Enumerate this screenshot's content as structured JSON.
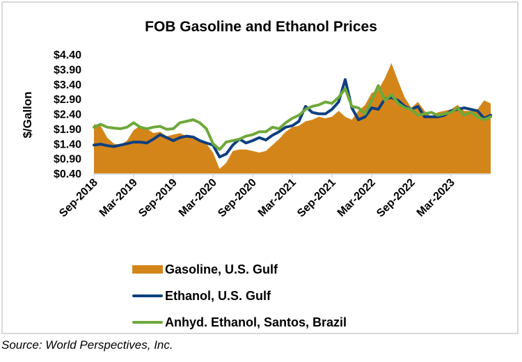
{
  "chart_data": {
    "type": "area+line",
    "title": "FOB Gasoline and Ethanol Prices",
    "ylabel": "$/Gallon",
    "xlabel": "",
    "ylim": [
      0.4,
      4.4
    ],
    "yticks": [
      "$4.40",
      "$3.90",
      "$3.40",
      "$2.90",
      "$2.40",
      "$1.90",
      "$1.40",
      "$0.90",
      "$0.40"
    ],
    "ytick_values": [
      4.4,
      3.9,
      3.4,
      2.9,
      2.4,
      1.9,
      1.4,
      0.9,
      0.4
    ],
    "xticks": [
      "Sep-2018",
      "Mar-2019",
      "Sep-2019",
      "Mar-2020",
      "Sep-2020",
      "Mar-2021",
      "Sep-2021",
      "Mar-2022",
      "Sep-2022",
      "Mar-2023"
    ],
    "x_start": "Sep-2018",
    "x_end": "Sep-2023",
    "x_step": "month",
    "grid": false,
    "legend_position": "bottom",
    "series": [
      {
        "name": "Gasoline, U.S. Gulf",
        "kind": "area",
        "color": "#d4851a",
        "values": [
          2.05,
          2.0,
          1.6,
          1.4,
          1.35,
          1.5,
          1.85,
          2.0,
          1.9,
          1.75,
          1.8,
          1.65,
          1.7,
          1.75,
          1.65,
          1.65,
          1.5,
          1.4,
          1.1,
          0.55,
          0.75,
          1.15,
          1.2,
          1.2,
          1.15,
          1.1,
          1.15,
          1.35,
          1.55,
          1.8,
          1.95,
          2.0,
          2.15,
          2.2,
          2.3,
          2.25,
          2.3,
          2.5,
          2.3,
          2.2,
          2.5,
          2.7,
          3.1,
          3.2,
          3.6,
          4.1,
          3.5,
          2.95,
          2.6,
          2.8,
          2.5,
          2.3,
          2.45,
          2.5,
          2.55,
          2.7,
          2.5,
          2.5,
          2.55,
          2.85,
          2.75
        ]
      },
      {
        "name": "Ethanol, U.S. Gulf",
        "kind": "line",
        "color": "#0d3f80",
        "values": [
          1.35,
          1.38,
          1.33,
          1.3,
          1.35,
          1.4,
          1.45,
          1.45,
          1.42,
          1.55,
          1.7,
          1.6,
          1.5,
          1.6,
          1.65,
          1.62,
          1.5,
          1.42,
          1.35,
          0.95,
          1.05,
          1.35,
          1.55,
          1.42,
          1.5,
          1.6,
          1.52,
          1.68,
          1.8,
          1.95,
          2.0,
          2.15,
          2.65,
          2.45,
          2.4,
          2.4,
          2.55,
          2.8,
          3.55,
          2.6,
          2.2,
          2.3,
          2.6,
          2.55,
          2.9,
          2.95,
          2.85,
          2.65,
          2.55,
          2.65,
          2.3,
          2.3,
          2.3,
          2.35,
          2.5,
          2.55,
          2.6,
          2.55,
          2.5,
          2.25,
          2.35
        ]
      },
      {
        "name": "Anhyd. Ethanol, Santos, Brazil",
        "kind": "line",
        "color": "#6ea83a",
        "values": [
          1.95,
          2.05,
          1.95,
          1.92,
          1.9,
          1.95,
          2.1,
          1.95,
          1.9,
          1.95,
          1.98,
          1.88,
          1.9,
          2.1,
          2.15,
          2.2,
          2.1,
          1.9,
          1.4,
          1.2,
          1.45,
          1.5,
          1.55,
          1.65,
          1.7,
          1.8,
          1.8,
          1.95,
          1.9,
          2.1,
          2.25,
          2.35,
          2.55,
          2.65,
          2.7,
          2.8,
          2.75,
          2.95,
          3.25,
          2.65,
          2.6,
          2.4,
          2.85,
          3.35,
          2.85,
          3.05,
          2.75,
          2.6,
          2.55,
          2.35,
          2.4,
          2.45,
          2.35,
          2.4,
          2.45,
          2.6,
          2.35,
          2.45,
          2.3,
          2.2,
          2.3
        ]
      }
    ]
  },
  "source": "Source: World Perspectives, Inc."
}
